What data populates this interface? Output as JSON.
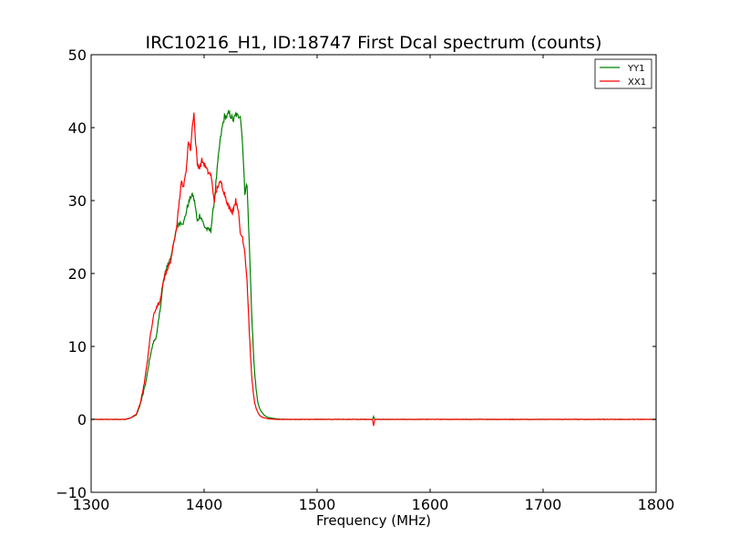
{
  "chart_data": {
    "type": "line",
    "title": "IRC10216_H1, ID:18747 First Dcal spectrum (counts)",
    "xlabel": "Frequency (MHz)",
    "ylabel": "",
    "xlim": [
      1300,
      1800
    ],
    "ylim": [
      -10,
      50
    ],
    "xticks": [
      1300,
      1400,
      1500,
      1600,
      1700,
      1800
    ],
    "yticks": [
      -10,
      0,
      10,
      20,
      30,
      40,
      50
    ],
    "grid": false,
    "legend_position": "top-right",
    "series": [
      {
        "name": "YY1",
        "color": "#008000",
        "x": [
          1300,
          1330,
          1335,
          1340,
          1343,
          1346,
          1349,
          1352,
          1355,
          1358,
          1361,
          1364,
          1367,
          1370,
          1373,
          1376,
          1379,
          1382,
          1385,
          1388,
          1390,
          1392,
          1394,
          1396,
          1398,
          1400,
          1403,
          1406,
          1409,
          1412,
          1414,
          1416,
          1418,
          1420,
          1422,
          1424,
          1426,
          1428,
          1430,
          1432,
          1434,
          1436,
          1437,
          1438,
          1440,
          1442,
          1444,
          1446,
          1448,
          1450,
          1453,
          1456,
          1460,
          1465,
          1470,
          1480,
          1500,
          1549,
          1550,
          1551,
          1600,
          1700,
          1800
        ],
        "y": [
          0,
          0,
          0.2,
          0.6,
          1.8,
          3.5,
          5.5,
          8.5,
          10.5,
          11.5,
          15,
          19,
          21,
          22,
          24,
          26.5,
          27,
          27,
          29,
          30.5,
          30.8,
          29.5,
          27,
          28,
          27.5,
          26.5,
          26,
          26,
          30,
          35,
          38,
          40,
          41.5,
          41.5,
          42,
          41.5,
          41,
          41.8,
          41.5,
          41.8,
          38,
          31,
          32,
          32,
          24,
          15,
          8,
          4,
          2,
          1.2,
          0.6,
          0.3,
          0.15,
          0.05,
          0,
          0,
          0,
          0,
          0.4,
          0,
          0,
          0,
          0
        ]
      },
      {
        "name": "XX1",
        "color": "#ff0000",
        "x": [
          1300,
          1330,
          1335,
          1340,
          1343,
          1346,
          1349,
          1352,
          1355,
          1358,
          1361,
          1364,
          1367,
          1370,
          1373,
          1376,
          1378,
          1380,
          1382,
          1384,
          1386,
          1388,
          1390,
          1391,
          1392,
          1394,
          1396,
          1398,
          1400,
          1403,
          1406,
          1409,
          1412,
          1415,
          1418,
          1420,
          1422,
          1425,
          1428,
          1430,
          1432,
          1434,
          1436,
          1438,
          1440,
          1442,
          1444,
          1446,
          1448,
          1450,
          1453,
          1456,
          1460,
          1465,
          1470,
          1480,
          1500,
          1549,
          1550,
          1551,
          1600,
          1700,
          1800
        ],
        "y": [
          0,
          0,
          0.2,
          0.7,
          2,
          4,
          7,
          11,
          14,
          15.5,
          16,
          19,
          20.5,
          21.5,
          24,
          27,
          30,
          32.5,
          32,
          34,
          38,
          37,
          41,
          42,
          39,
          35,
          34.5,
          35.5,
          35,
          34,
          33.5,
          30,
          32,
          32.5,
          31,
          30,
          29,
          28.5,
          30,
          29,
          25.5,
          25,
          23,
          19,
          12,
          6,
          3,
          1.5,
          0.8,
          0.4,
          0.2,
          0.1,
          0.05,
          0,
          0,
          0,
          0,
          0,
          -0.9,
          0,
          0,
          0,
          0
        ]
      }
    ]
  }
}
